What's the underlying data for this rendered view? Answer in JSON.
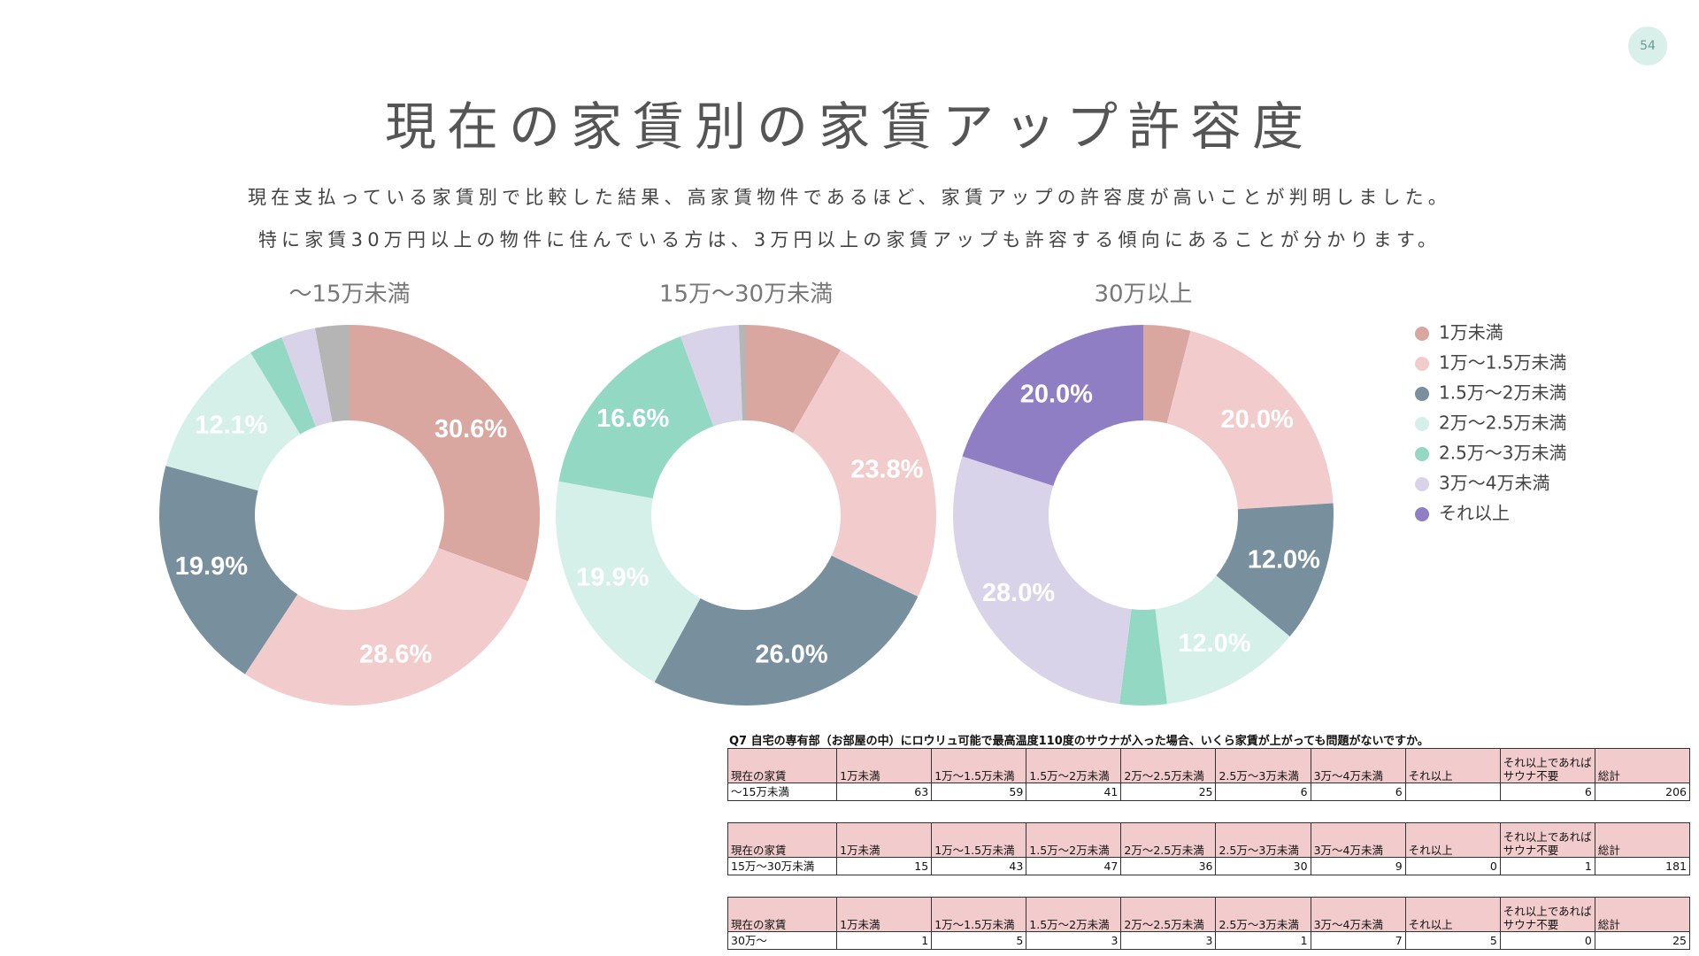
{
  "page": {
    "number": "54",
    "title": "現在の家賃別の家賃アップ許容度",
    "subtitle": [
      "現在支払っている家賃別で比較した結果、高家賃物件であるほど、家賃アップの許容度が高いことが判明しました。",
      "特に家賃30万円以上の物件に住んでいる方は、3万円以上の家賃アップも許容する傾向にあることが分かります。"
    ]
  },
  "chart_data": [
    {
      "type": "donut",
      "title": "〜15万未満",
      "categories": [
        "1万未満",
        "1万〜1.5万未満",
        "1.5万〜2万未満",
        "2万〜2.5万未満",
        "2.5万〜3万未満",
        "3万〜4万未満",
        "それ以上",
        null
      ],
      "values": [
        30.6,
        28.6,
        19.9,
        12.1,
        2.9,
        2.9,
        0,
        2.9
      ],
      "value_labels": [
        "30.6%",
        "28.6%",
        "19.9%",
        "12.1%",
        null,
        null,
        null,
        null
      ],
      "colors": [
        "#d9a6a0",
        "#f2cccc",
        "#788f9d",
        "#d5efe9",
        "#93d8c3",
        "#d9d3ea",
        "#8f7ec4",
        "#b5b5b5"
      ],
      "legend": "right"
    },
    {
      "type": "donut",
      "title": "15万〜30万未満",
      "categories": [
        "1万未満",
        "1万〜1.5万未満",
        "1.5万〜2万未満",
        "2万〜2.5万未満",
        "2.5万〜3万未満",
        "3万〜4万未満",
        "それ以上",
        null
      ],
      "values": [
        8.3,
        23.8,
        26.0,
        19.9,
        16.6,
        5.0,
        0,
        0.6
      ],
      "value_labels": [
        null,
        "23.8%",
        "26.0%",
        "19.9%",
        "16.6%",
        null,
        null,
        null
      ],
      "colors": [
        "#d9a6a0",
        "#f2cccc",
        "#788f9d",
        "#d5efe9",
        "#93d8c3",
        "#d9d3ea",
        "#8f7ec4",
        "#b5b5b5"
      ]
    },
    {
      "type": "donut",
      "title": "30万以上",
      "categories": [
        "1万未満",
        "1万〜1.5万未満",
        "1.5万〜2万未満",
        "2万〜2.5万未満",
        "2.5万〜3万未満",
        "3万〜4万未満",
        "それ以上",
        null
      ],
      "values": [
        4.0,
        20.0,
        12.0,
        12.0,
        4.0,
        28.0,
        20.0,
        0
      ],
      "value_labels": [
        null,
        "20.0%",
        "12.0%",
        "12.0%",
        null,
        "28.0%",
        "20.0%",
        null
      ],
      "colors": [
        "#d9a6a0",
        "#f2cccc",
        "#788f9d",
        "#d5efe9",
        "#93d8c3",
        "#d9d3ea",
        "#8f7ec4",
        "#b5b5b5"
      ]
    }
  ],
  "tables": {
    "question": "Q7 自宅の専有部（お部屋の中）にロウリュ可能で最高温度110度のサウナが入った場合、いくら家賃が上がっても問題がないですか。",
    "items": [
      {
        "header": [
          "現在の家賃",
          "1万未満",
          "1万〜1.5万未満",
          "1.5万〜2万未満",
          "2万〜2.5万未満",
          "2.5万〜3万未満",
          "3万〜4万未満",
          "それ以上",
          "それ以上であればサウナ不要",
          "総計"
        ],
        "row": [
          "〜15万未満",
          63,
          59,
          41,
          25,
          6,
          6,
          null,
          6,
          206
        ]
      },
      {
        "header": [
          "現在の家賃",
          "1万未満",
          "1万〜1.5万未満",
          "1.5万〜2万未満",
          "2万〜2.5万未満",
          "2.5万〜3万未満",
          "3万〜4万未満",
          "それ以上",
          "それ以上であればサウナ不要",
          "総計"
        ],
        "row": [
          "15万〜30万未満",
          15,
          43,
          47,
          36,
          30,
          9,
          0,
          1,
          181
        ]
      },
      {
        "header": [
          "現在の家賃",
          "1万未満",
          "1万〜1.5万未満",
          "1.5万〜2万未満",
          "2万〜2.5万未満",
          "2.5万〜3万未満",
          "3万〜4万未満",
          "それ以上",
          "それ以上であればサウナ不要",
          "総計"
        ],
        "row": [
          "30万〜",
          1,
          5,
          3,
          3,
          1,
          7,
          5,
          0,
          25
        ]
      }
    ]
  }
}
